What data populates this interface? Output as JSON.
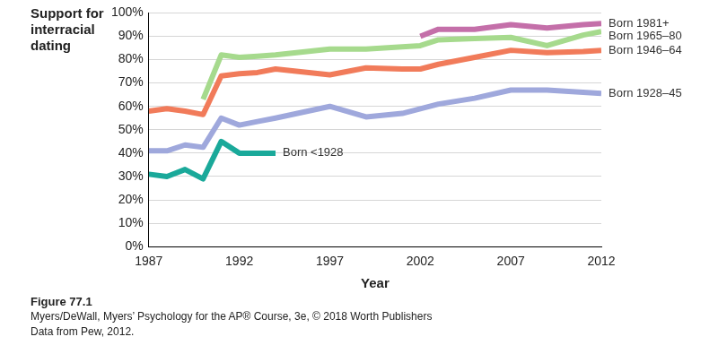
{
  "chart_data": {
    "type": "line",
    "y_label": "Support for interracial dating",
    "x_label": "Year",
    "figure_label": "Figure 77.1",
    "caption_lines": [
      "Myers/DeWall, Myers’ Psychology for the AP® Course, 3e, © 2018 Worth Publishers",
      "Data from Pew, 2012."
    ],
    "x": [
      1987,
      1988,
      1989,
      1990,
      1991,
      1992,
      1993,
      1994,
      1997,
      1999,
      2001,
      2002,
      2003,
      2005,
      2007,
      2009,
      2011,
      2012
    ],
    "series": [
      {
        "name": "Born <1928",
        "color": "#1aa99a",
        "values": [
          31,
          30,
          33,
          29,
          45,
          40,
          40,
          40,
          null,
          null,
          null,
          null,
          null,
          null,
          null,
          null,
          null,
          null
        ]
      },
      {
        "name": "Born 1928–45",
        "color": "#9fa8dc",
        "values": [
          41,
          41,
          43.5,
          42.5,
          55,
          52,
          53.5,
          55,
          60,
          55.5,
          57,
          59,
          61,
          63.5,
          67,
          67,
          66,
          65.5
        ]
      },
      {
        "name": "Born 1946–64",
        "color": "#f17b5a",
        "values": [
          58,
          59,
          58,
          56.5,
          73,
          74,
          74.5,
          76,
          73.5,
          76.5,
          76,
          76,
          78,
          81,
          84,
          83,
          83.5,
          84
        ]
      },
      {
        "name": "Born 1965–80",
        "color": "#a6da8d",
        "values": [
          null,
          null,
          null,
          63,
          82,
          81,
          81.5,
          82,
          84.5,
          84.5,
          85.5,
          86,
          88.5,
          89,
          89.5,
          86,
          90.5,
          92
        ]
      },
      {
        "name": "Born 1981+",
        "color": "#c46fa9",
        "values": [
          null,
          null,
          null,
          null,
          null,
          null,
          null,
          null,
          null,
          null,
          null,
          90,
          93,
          93,
          95,
          93.5,
          95,
          95.5
        ]
      }
    ],
    "xlim": [
      1987,
      2012
    ],
    "xticks": [
      1987,
      1992,
      1997,
      2002,
      2007,
      2012
    ],
    "ylim": [
      0,
      100
    ],
    "yticks": [
      {
        "value": 0,
        "label": "0%"
      },
      {
        "value": 10,
        "label": "10%"
      },
      {
        "value": 20,
        "label": "20%"
      },
      {
        "value": 30,
        "label": "30%"
      },
      {
        "value": 40,
        "label": "40%"
      },
      {
        "value": 50,
        "label": "50%"
      },
      {
        "value": 60,
        "label": "60%"
      },
      {
        "value": 70,
        "label": "70%"
      },
      {
        "value": 80,
        "label": "80%"
      },
      {
        "value": 90,
        "label": "90%"
      },
      {
        "value": 100,
        "label": "100%"
      }
    ],
    "grid": true
  }
}
